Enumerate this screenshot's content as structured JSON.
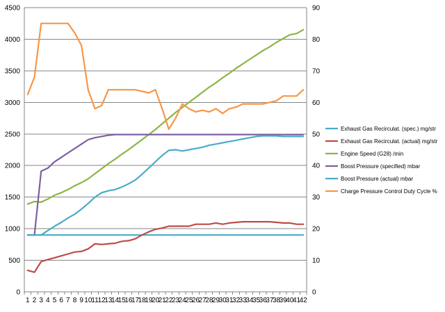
{
  "chart_data": {
    "type": "line",
    "categories": [
      "1",
      "2",
      "3",
      "4",
      "5",
      "6",
      "7",
      "8",
      "9",
      "10",
      "11",
      "12",
      "13",
      "14",
      "15",
      "16",
      "17",
      "18",
      "19",
      "20",
      "21",
      "22",
      "23",
      "24",
      "25",
      "26",
      "27",
      "28",
      "29",
      "30",
      "31",
      "32",
      "33",
      "34",
      "35",
      "36",
      "37",
      "38",
      "39",
      "40",
      "41",
      "42"
    ],
    "y_left": {
      "ylim": [
        0,
        4500
      ],
      "ticks": [
        "0",
        "500",
        "1000",
        "1500",
        "2000",
        "2500",
        "3000",
        "3500",
        "4000",
        "4500"
      ]
    },
    "y_right": {
      "ylim": [
        0,
        90
      ],
      "ticks": [
        "0",
        "10",
        "20",
        "30",
        "40",
        "50",
        "60",
        "70",
        "80",
        "90"
      ]
    },
    "grid": "horizontal",
    "legend_position": "right",
    "series": [
      {
        "name": "Exhaust Gas Recirculat. (spec.)  mg/str",
        "color": "#4aacc6",
        "axis": "left",
        "values": [
          900,
          900,
          900,
          900,
          900,
          900,
          900,
          900,
          900,
          900,
          900,
          900,
          900,
          900,
          900,
          900,
          900,
          900,
          900,
          900,
          900,
          900,
          900,
          900,
          900,
          900,
          900,
          900,
          900,
          900,
          900,
          900,
          900,
          900,
          900,
          900,
          900,
          900,
          900,
          900,
          900,
          900
        ]
      },
      {
        "name": "Exhaust Gas Recirculat. (actual)  mg/str",
        "color": "#be4b48",
        "axis": "left",
        "values": [
          340,
          310,
          480,
          510,
          540,
          570,
          600,
          630,
          640,
          680,
          760,
          750,
          760,
          770,
          800,
          810,
          840,
          900,
          950,
          990,
          1010,
          1040,
          1040,
          1040,
          1040,
          1070,
          1070,
          1070,
          1090,
          1070,
          1090,
          1100,
          1110,
          1110,
          1110,
          1110,
          1110,
          1100,
          1090,
          1090,
          1070,
          1070
        ]
      },
      {
        "name": "Engine Speed (G28)  /min",
        "color": "#8cb544",
        "axis": "left",
        "values": [
          1390,
          1430,
          1420,
          1470,
          1530,
          1570,
          1620,
          1680,
          1730,
          1790,
          1870,
          1950,
          2030,
          2100,
          2180,
          2250,
          2330,
          2410,
          2490,
          2570,
          2660,
          2750,
          2840,
          2920,
          3000,
          3080,
          3160,
          3240,
          3310,
          3390,
          3460,
          3540,
          3610,
          3680,
          3750,
          3820,
          3880,
          3950,
          4010,
          4070,
          4090,
          4150
        ]
      },
      {
        "name": "Boost Pressure (specified)  mbar",
        "color": "#7d5fa0",
        "axis": "left",
        "values": [
          900,
          900,
          1910,
          1960,
          2060,
          2130,
          2200,
          2270,
          2340,
          2410,
          2440,
          2460,
          2480,
          2490,
          2490,
          2490,
          2490,
          2490,
          2490,
          2490,
          2490,
          2490,
          2490,
          2490,
          2490,
          2490,
          2490,
          2490,
          2490,
          2490,
          2490,
          2490,
          2490,
          2490,
          2490,
          2490,
          2490,
          2490,
          2490,
          2490,
          2490,
          2490
        ]
      },
      {
        "name": "Boost Pressure (actual)  mbar",
        "color": "#4aacc6",
        "axis": "left",
        "values": [
          900,
          900,
          900,
          970,
          1040,
          1100,
          1170,
          1230,
          1310,
          1400,
          1500,
          1570,
          1600,
          1620,
          1660,
          1710,
          1770,
          1860,
          1960,
          2060,
          2160,
          2240,
          2250,
          2230,
          2250,
          2270,
          2290,
          2320,
          2340,
          2360,
          2380,
          2400,
          2420,
          2440,
          2460,
          2470,
          2470,
          2470,
          2460,
          2460,
          2460,
          2460
        ]
      },
      {
        "name": "Charge Pressure Control Duty Cycle  %",
        "color": "#f79646",
        "axis": "right",
        "values": [
          62.5,
          68,
          85,
          85,
          85,
          85,
          85,
          82,
          78,
          64,
          58,
          59,
          64,
          64,
          64,
          64,
          64,
          63.5,
          63,
          64,
          58,
          51.5,
          55,
          59.5,
          58,
          57,
          57.5,
          57,
          58,
          56.5,
          58,
          58.5,
          59.5,
          59.5,
          59.5,
          59.5,
          60,
          60.5,
          62,
          62,
          62,
          64
        ]
      }
    ]
  }
}
